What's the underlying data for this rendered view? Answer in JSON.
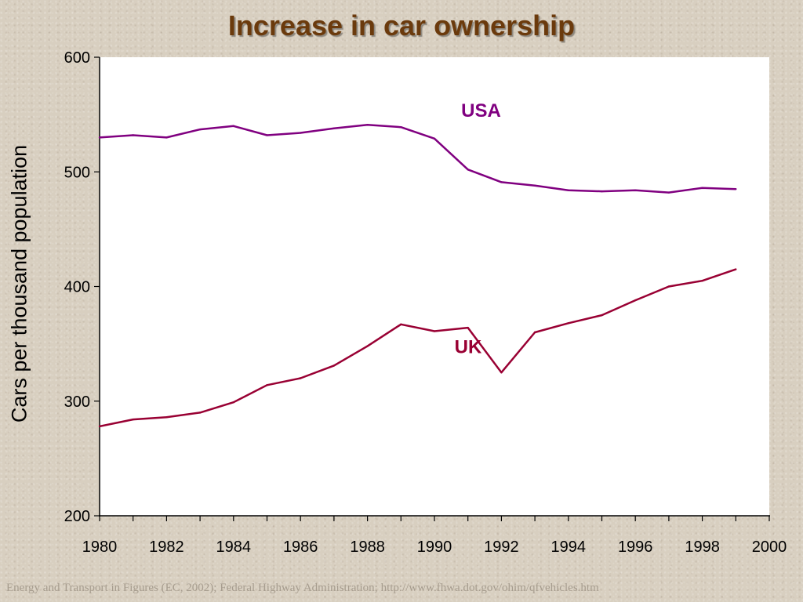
{
  "chart_data": {
    "type": "line",
    "title": "Increase in car ownership",
    "ylabel": "Cars per thousand population",
    "xlabel": "",
    "xlim": [
      1980,
      2000
    ],
    "ylim": [
      200,
      600
    ],
    "x_ticks": [
      1980,
      1982,
      1984,
      1986,
      1988,
      1990,
      1992,
      1994,
      1996,
      1998,
      2000
    ],
    "y_ticks": [
      200,
      300,
      400,
      500,
      600
    ],
    "grid": false,
    "x": [
      1980,
      1981,
      1982,
      1983,
      1984,
      1985,
      1986,
      1987,
      1988,
      1989,
      1990,
      1991,
      1992,
      1993,
      1994,
      1995,
      1996,
      1997,
      1998,
      1999
    ],
    "series": [
      {
        "name": "USA",
        "color": "#800080",
        "label_at": [
          1990.8,
          548
        ],
        "values": [
          530,
          532,
          530,
          537,
          540,
          532,
          534,
          538,
          541,
          539,
          529,
          502,
          491,
          488,
          484,
          483,
          484,
          482,
          486,
          485
        ]
      },
      {
        "name": "UK",
        "color": "#990033",
        "label_at": [
          1990.6,
          342
        ],
        "values": [
          278,
          284,
          286,
          290,
          299,
          314,
          320,
          331,
          348,
          367,
          361,
          364,
          325,
          360,
          368,
          375,
          388,
          400,
          405,
          415
        ]
      }
    ]
  },
  "source_text": "Energy and Transport in Figures (EC, 2002); Federal Highway Administration; http://www.fhwa.dot.gov/ohim/qfvehicles.htm"
}
